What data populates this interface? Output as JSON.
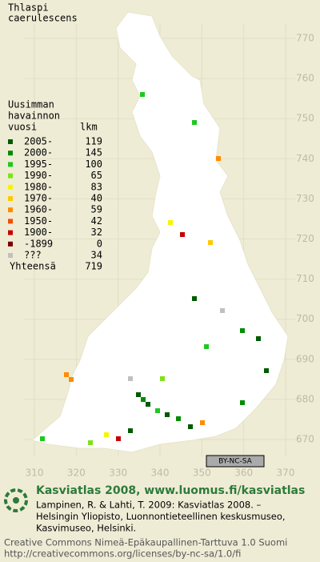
{
  "species": {
    "genus": "Thlaspi",
    "epithet": "caerulescens"
  },
  "grid": {
    "xticks": [
      310,
      320,
      330,
      340,
      350,
      360,
      370
    ],
    "yticks": [
      670,
      680,
      690,
      700,
      710,
      720,
      730,
      740,
      750,
      760,
      770
    ]
  },
  "legend": {
    "heading": [
      "Uusimman",
      "havainnon",
      "vuosi"
    ],
    "count_heading": "lkm",
    "rows": [
      {
        "period": "2005-",
        "count": 119,
        "color": "#005a00"
      },
      {
        "period": "2000-",
        "count": 145,
        "color": "#008c00"
      },
      {
        "period": "1995-",
        "count": 100,
        "color": "#1fc81f"
      },
      {
        "period": "1990-",
        "count": 65,
        "color": "#7de31a"
      },
      {
        "period": "1980-",
        "count": 83,
        "color": "#f5f500"
      },
      {
        "period": "1970-",
        "count": 40,
        "color": "#ffc800"
      },
      {
        "period": "1960-",
        "count": 59,
        "color": "#ff8c00"
      },
      {
        "period": "1950-",
        "count": 42,
        "color": "#f05000"
      },
      {
        "period": "1900-",
        "count": 32,
        "color": "#c80000"
      },
      {
        "period": "-1899",
        "count": 0,
        "color": "#780000"
      },
      {
        "period": "???",
        "count": 34,
        "color": "#c0c0c0"
      }
    ],
    "total": {
      "label": "Yhteensä",
      "count": 719
    }
  },
  "badge": "BY-NC-SA",
  "footer": {
    "site": "Kasviatlas 2008, www.luomus.fi/kasviatlas",
    "citation": [
      "Lampinen, R. & Lahti, T. 2009: Kasviatlas 2008. –",
      "Helsingin Yliopisto, Luonnontieteellinen keskusmuseo,",
      "Kasvimuseo, Helsinki."
    ],
    "license": [
      "Creative Commons Nimeä-Epäkaupallinen-Tarttuva 1.0 Suomi",
      "http://creativecommons.org/licenses/by-nc-sa/1.0/fi"
    ]
  }
}
